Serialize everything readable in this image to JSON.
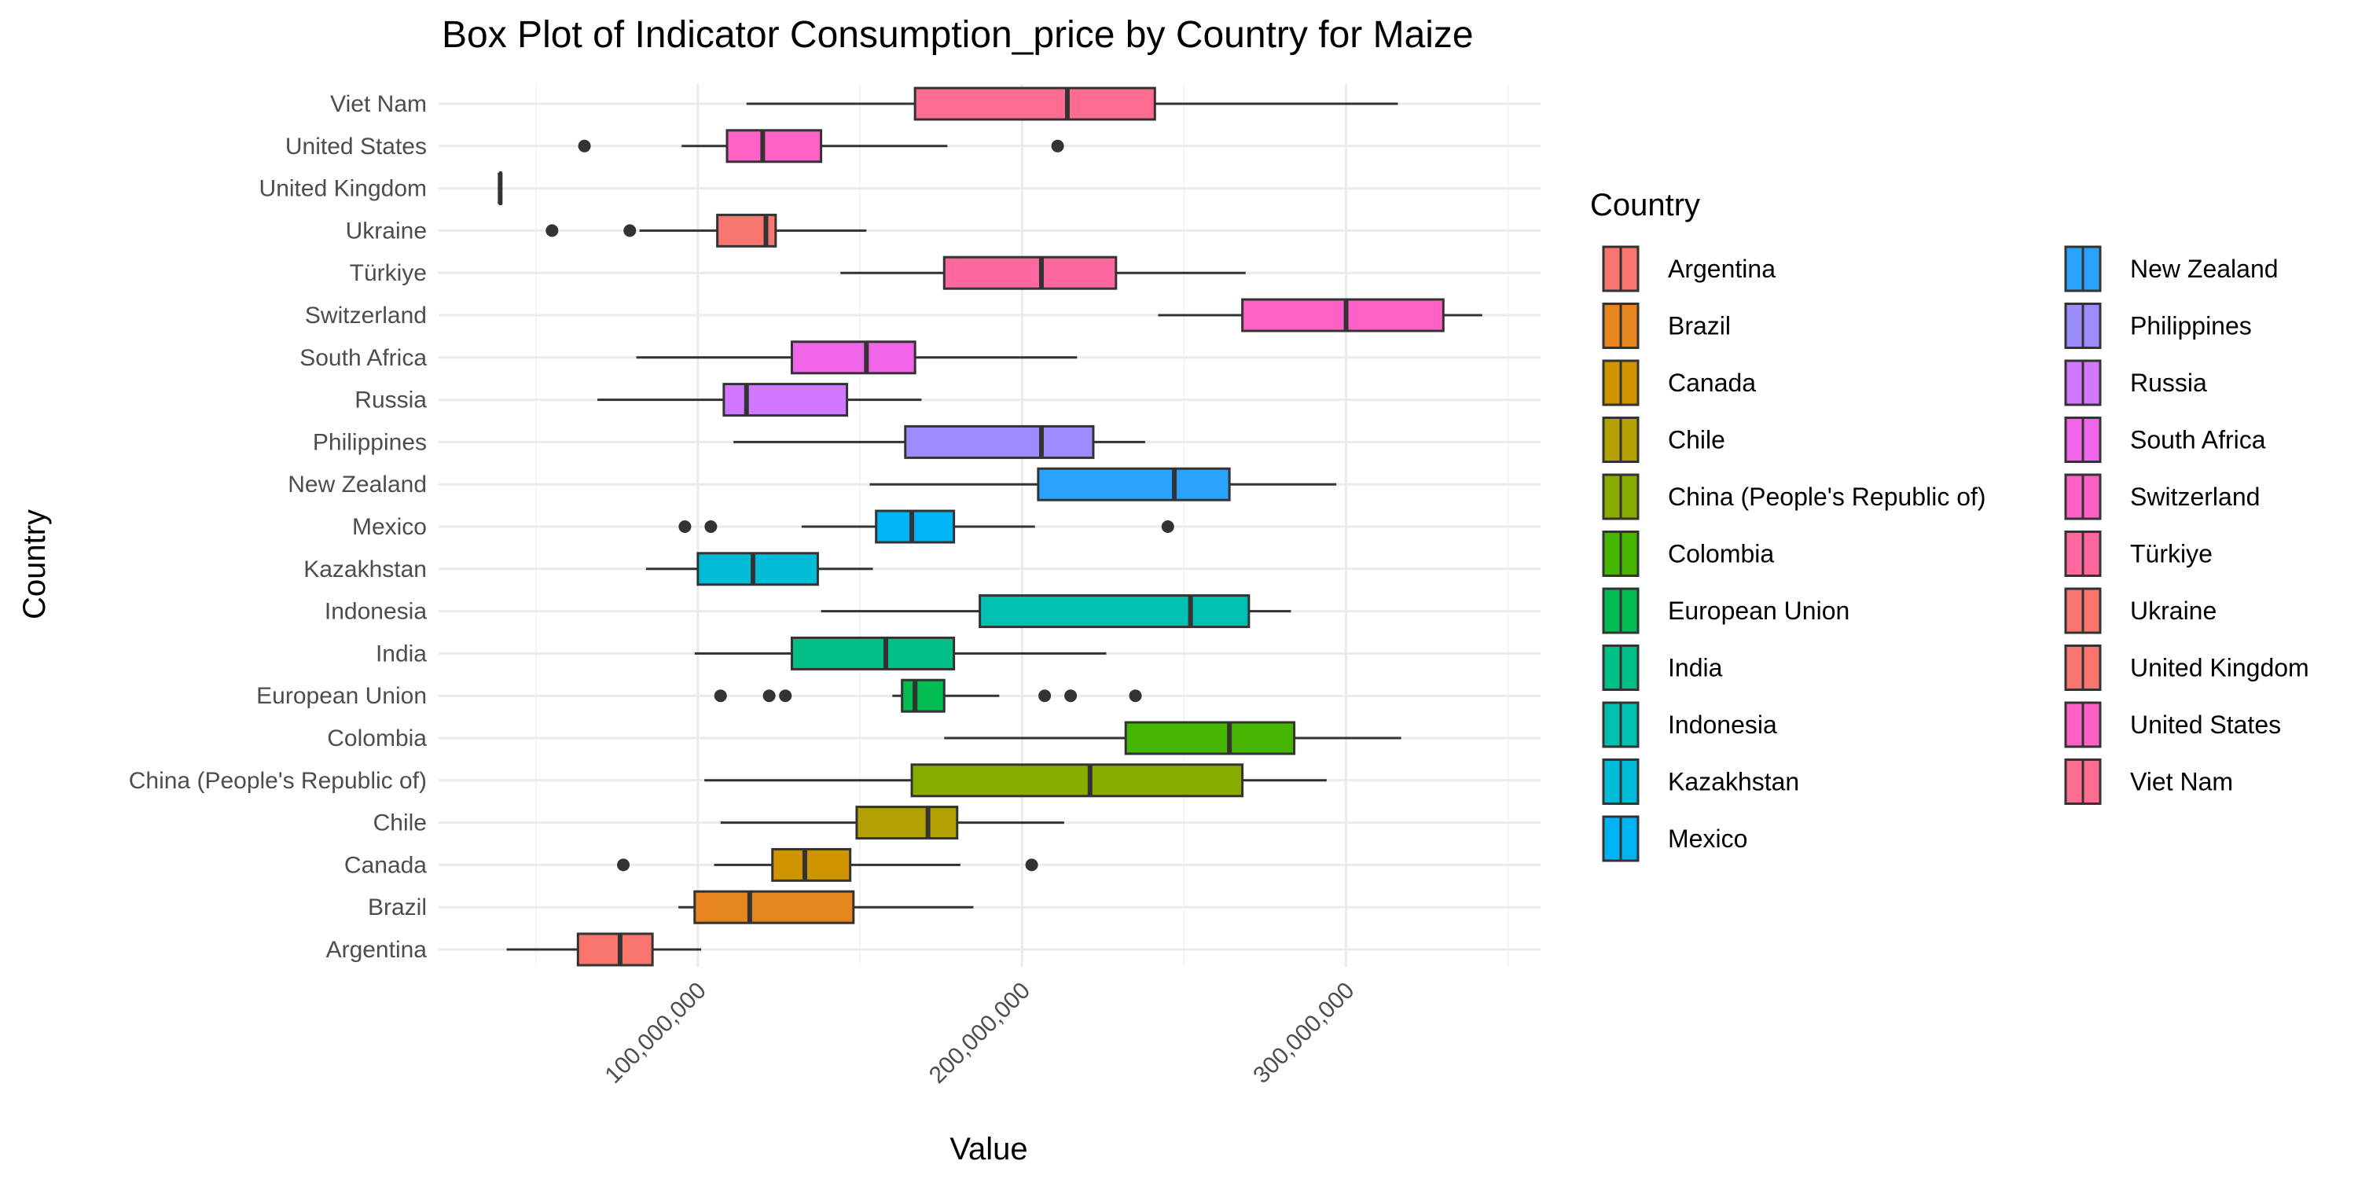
{
  "chart_data": {
    "type": "box",
    "title": "Box Plot of Indicator Consumption_price by Country for Maize",
    "xlabel": "Value",
    "ylabel": "Country",
    "xlim": [
      20000000,
      360000000
    ],
    "x_ticks": [
      100000000,
      200000000,
      300000000
    ],
    "x_tick_labels": [
      "100,000,000",
      "200,000,000",
      "300,000,000"
    ],
    "grid": true,
    "legend_title": "Country",
    "legend_position": "right",
    "series": [
      {
        "name": "Argentina",
        "color": "#F8766D",
        "whisker_low": 41000000,
        "q1": 63000000,
        "median": 76000000,
        "q3": 86000000,
        "whisker_high": 101000000,
        "outliers": []
      },
      {
        "name": "Brazil",
        "color": "#E7851E",
        "whisker_low": 94000000,
        "q1": 99000000,
        "median": 116000000,
        "q3": 148000000,
        "whisker_high": 185000000,
        "outliers": []
      },
      {
        "name": "Canada",
        "color": "#D09400",
        "whisker_low": 105000000,
        "q1": 123000000,
        "median": 133000000,
        "q3": 147000000,
        "whisker_high": 181000000,
        "outliers": [
          77000000,
          203000000
        ]
      },
      {
        "name": "Chile",
        "color": "#B2A100",
        "whisker_low": 107000000,
        "q1": 149000000,
        "median": 171000000,
        "q3": 180000000,
        "whisker_high": 213000000,
        "outliers": []
      },
      {
        "name": "China (People's Republic of)",
        "color": "#89AC00",
        "whisker_low": 102000000,
        "q1": 166000000,
        "median": 221000000,
        "q3": 268000000,
        "whisker_high": 294000000,
        "outliers": []
      },
      {
        "name": "Colombia",
        "color": "#45B500",
        "whisker_low": 176000000,
        "q1": 232000000,
        "median": 264000000,
        "q3": 284000000,
        "whisker_high": 317000000,
        "outliers": []
      },
      {
        "name": "European Union",
        "color": "#00BC51",
        "whisker_low": 160000000,
        "q1": 163000000,
        "median": 167000000,
        "q3": 176000000,
        "whisker_high": 193000000,
        "outliers": [
          107000000,
          122000000,
          127000000,
          207000000,
          215000000,
          235000000
        ]
      },
      {
        "name": "India",
        "color": "#00C087",
        "whisker_low": 99000000,
        "q1": 129000000,
        "median": 158000000,
        "q3": 179000000,
        "whisker_high": 226000000,
        "outliers": []
      },
      {
        "name": "Indonesia",
        "color": "#00C0B2",
        "whisker_low": 138000000,
        "q1": 187000000,
        "median": 252000000,
        "q3": 270000000,
        "whisker_high": 283000000,
        "outliers": []
      },
      {
        "name": "Kazakhstan",
        "color": "#00BCD6",
        "whisker_low": 84000000,
        "q1": 100000000,
        "median": 117000000,
        "q3": 137000000,
        "whisker_high": 154000000,
        "outliers": []
      },
      {
        "name": "Mexico",
        "color": "#00B3F2",
        "whisker_low": 132000000,
        "q1": 155000000,
        "median": 166000000,
        "q3": 179000000,
        "whisker_high": 204000000,
        "outliers": [
          96000000,
          104000000,
          245000000
        ]
      },
      {
        "name": "New Zealand",
        "color": "#29A3FF",
        "whisker_low": 153000000,
        "q1": 205000000,
        "median": 247000000,
        "q3": 264000000,
        "whisker_high": 297000000,
        "outliers": []
      },
      {
        "name": "Philippines",
        "color": "#9C8DFF",
        "whisker_low": 111000000,
        "q1": 164000000,
        "median": 206000000,
        "q3": 222000000,
        "whisker_high": 238000000,
        "outliers": []
      },
      {
        "name": "Russia",
        "color": "#D277FF",
        "whisker_low": 69000000,
        "q1": 108000000,
        "median": 115000000,
        "q3": 146000000,
        "whisker_high": 169000000,
        "outliers": []
      },
      {
        "name": "South Africa",
        "color": "#F166E8",
        "whisker_low": 81000000,
        "q1": 129000000,
        "median": 152000000,
        "q3": 167000000,
        "whisker_high": 217000000,
        "outliers": []
      },
      {
        "name": "Switzerland",
        "color": "#FF61C7",
        "whisker_low": 242000000,
        "q1": 268000000,
        "median": 300000000,
        "q3": 330000000,
        "whisker_high": 342000000,
        "outliers": []
      },
      {
        "name": "Türkiye",
        "color": "#FF689E",
        "whisker_low": 144000000,
        "q1": 176000000,
        "median": 206000000,
        "q3": 229000000,
        "whisker_high": 269000000,
        "outliers": []
      },
      {
        "name": "Ukraine",
        "color": "#F8766D",
        "whisker_low": 82000000,
        "q1": 106000000,
        "median": 121000000,
        "q3": 124000000,
        "whisker_high": 152000000,
        "outliers": [
          55000000,
          79000000
        ]
      },
      {
        "name": "United Kingdom",
        "color": "#F8766D",
        "whisker_low": 39000000,
        "q1": 39000000,
        "median": 39000000,
        "q3": 39000000,
        "whisker_high": 39000000,
        "outliers": []
      },
      {
        "name": "United States",
        "color": "#FF61C7",
        "whisker_low": 95000000,
        "q1": 109000000,
        "median": 120000000,
        "q3": 138000000,
        "whisker_high": 177000000,
        "outliers": [
          65000000,
          211000000
        ]
      },
      {
        "name": "Viet Nam",
        "color": "#FF6C91",
        "whisker_low": 115000000,
        "q1": 167000000,
        "median": 214000000,
        "q3": 241000000,
        "whisker_high": 316000000,
        "outliers": []
      }
    ]
  }
}
